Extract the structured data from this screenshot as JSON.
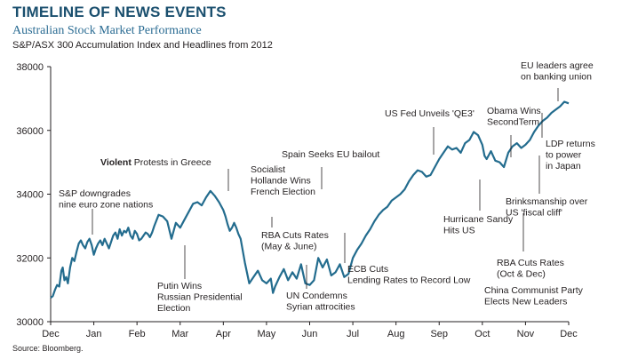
{
  "header": {
    "title": "TIMELINE OF NEWS EVENTS",
    "subtitle": "Australian Stock Market Performance",
    "subtitle2": "S&P/ASX 300 Accumulation Index and Headlines from 2012"
  },
  "footer": {
    "source": "Source: Bloomberg."
  },
  "colors": {
    "line": "#236c8e",
    "axis": "#231f20",
    "title": "#1a4f6e",
    "subtitle": "#2b6c93"
  },
  "chart_data": {
    "type": "line",
    "title": "TIMELINE OF NEWS EVENTS",
    "subtitle": "Australian Stock Market Performance",
    "grid": false,
    "xlim": [
      0,
      12
    ],
    "ylim": [
      30000,
      38000
    ],
    "x_tick_labels": [
      "Dec",
      "Jan",
      "Feb",
      "Mar",
      "Apr",
      "May",
      "Jun",
      "Jul",
      "Aug",
      "Sep",
      "Oct",
      "Nov",
      "Dec"
    ],
    "y_ticks": [
      30000,
      32000,
      34000,
      36000,
      38000
    ],
    "y_tick_labels": [
      "30000",
      "32000",
      "34000",
      "36000",
      "38000"
    ],
    "series": [
      {
        "x": [
          0,
          0.05,
          0.1,
          0.15,
          0.2,
          0.25,
          0.28,
          0.32,
          0.36,
          0.4,
          0.45,
          0.5,
          0.55,
          0.6,
          0.65,
          0.7,
          0.75,
          0.8,
          0.85,
          0.9,
          0.95,
          1.0,
          1.05,
          1.1,
          1.15,
          1.2,
          1.25,
          1.3,
          1.35,
          1.4,
          1.45,
          1.5,
          1.55,
          1.6,
          1.65,
          1.7,
          1.75,
          1.8,
          1.85,
          1.9,
          1.95,
          2.0,
          2.05,
          2.1,
          2.15,
          2.2,
          2.25,
          2.3,
          2.35,
          2.4,
          2.5,
          2.6,
          2.7,
          2.8,
          2.9,
          3.0,
          3.1,
          3.2,
          3.3,
          3.4,
          3.5,
          3.6,
          3.7,
          3.8,
          3.9,
          4.0,
          4.05,
          4.1,
          4.15,
          4.2,
          4.25,
          4.3,
          4.35,
          4.4,
          4.5,
          4.6,
          4.7,
          4.8,
          4.9,
          5.0,
          5.1,
          5.15,
          5.2,
          5.3,
          5.4,
          5.5,
          5.6,
          5.7,
          5.8,
          5.9,
          6.0,
          6.1,
          6.2,
          6.3,
          6.4,
          6.5,
          6.6,
          6.7,
          6.8,
          6.9,
          7.0,
          7.1,
          7.2,
          7.3,
          7.4,
          7.5,
          7.6,
          7.7,
          7.8,
          7.9,
          8.0,
          8.1,
          8.2,
          8.3,
          8.4,
          8.5,
          8.6,
          8.7,
          8.8,
          8.9,
          9.0,
          9.1,
          9.2,
          9.3,
          9.4,
          9.5,
          9.6,
          9.7,
          9.8,
          9.9,
          10.0,
          10.05,
          10.1,
          10.2,
          10.3,
          10.4,
          10.5,
          10.6,
          10.7,
          10.8,
          10.9,
          11.0,
          11.1,
          11.2,
          11.3,
          11.4,
          11.5,
          11.6,
          11.7,
          11.8,
          11.9,
          12.0
        ],
        "y": [
          30750,
          30800,
          31000,
          31150,
          31100,
          31600,
          31700,
          31300,
          31400,
          31200,
          31700,
          32000,
          31900,
          32200,
          32450,
          32550,
          32400,
          32300,
          32500,
          32600,
          32400,
          32100,
          32300,
          32450,
          32550,
          32400,
          32600,
          32450,
          32300,
          32500,
          32700,
          32800,
          32600,
          32900,
          32700,
          32850,
          32800,
          32950,
          32700,
          32600,
          32850,
          32750,
          32550,
          32600,
          32700,
          32800,
          32750,
          32650,
          32800,
          33000,
          33350,
          33300,
          33150,
          32600,
          33100,
          32950,
          33200,
          33450,
          33700,
          33750,
          33650,
          33900,
          34100,
          33950,
          33750,
          33500,
          33300,
          33050,
          32850,
          32950,
          33100,
          32950,
          32750,
          32600,
          31850,
          31200,
          31400,
          31600,
          31300,
          31200,
          31350,
          30900,
          31100,
          31400,
          31650,
          31300,
          31550,
          31350,
          31800,
          31200,
          31150,
          31300,
          32000,
          31700,
          31950,
          31450,
          31550,
          31800,
          31400,
          31500,
          32000,
          32250,
          32450,
          32700,
          32900,
          33150,
          33350,
          33500,
          33600,
          33800,
          33900,
          34000,
          34150,
          34400,
          34600,
          34750,
          34700,
          34550,
          34600,
          34850,
          35100,
          35300,
          35500,
          35400,
          35450,
          35300,
          35600,
          35700,
          35950,
          35850,
          35550,
          35200,
          35100,
          35350,
          35050,
          35000,
          34850,
          35300,
          35500,
          35600,
          35450,
          35550,
          35700,
          35950,
          36150,
          36300,
          36400,
          36550,
          36650,
          36750,
          36900,
          36850
        ]
      }
    ],
    "annotations": [
      {
        "lines": [
          "S&P downgrades",
          "nine euro zone nations"
        ]
      },
      {
        "prefix": "Violent",
        "lines": [
          " Protests in Greece"
        ]
      },
      {
        "lines": [
          "Putin Wins",
          "Russian Presidential",
          "Election"
        ]
      },
      {
        "lines": [
          "Socialist",
          "Hollande Wins",
          "French Election"
        ]
      },
      {
        "lines": [
          "RBA Cuts Rates",
          "(May & June)"
        ]
      },
      {
        "lines": [
          "UN Condemns",
          "Syrian attrocities"
        ]
      },
      {
        "lines": [
          "Spain Seeks EU bailout"
        ]
      },
      {
        "lines": [
          "ECB Cuts",
          "Lending Rates to Record Low"
        ]
      },
      {
        "lines": [
          "US Fed Unveils 'QE3'"
        ]
      },
      {
        "lines": [
          "Hurricane Sandy",
          "Hits US"
        ]
      },
      {
        "lines": [
          "Obama Wins",
          "SecondTerm"
        ]
      },
      {
        "lines": [
          "EU leaders agree",
          "on banking union"
        ]
      },
      {
        "lines": [
          "LDP returns",
          "to power",
          "in Japan"
        ]
      },
      {
        "lines": [
          "Brinksmanship over",
          "US 'fiscal cliff'"
        ]
      },
      {
        "lines": [
          "RBA Cuts Rates",
          "(Oct & Dec)"
        ]
      },
      {
        "lines": [
          "China Communist Party",
          "Elects New Leaders"
        ]
      }
    ]
  }
}
